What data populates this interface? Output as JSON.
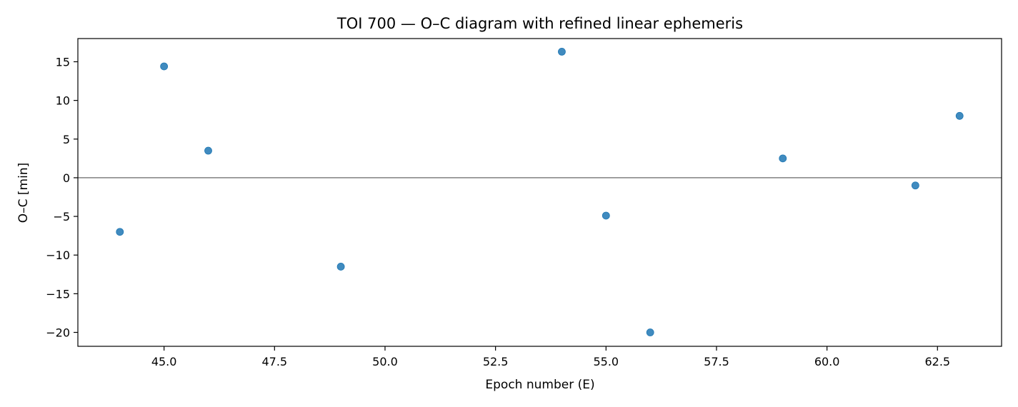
{
  "chart_data": {
    "type": "scatter",
    "title": "TOI 700 — O–C diagram with refined linear ephemeris",
    "xlabel": "Epoch number (E)",
    "ylabel": "O–C [min]",
    "xlim": [
      43.05,
      63.95
    ],
    "ylim": [
      -21.8,
      18.0
    ],
    "x_ticks": [
      45.0,
      47.5,
      50.0,
      52.5,
      55.0,
      57.5,
      60.0,
      62.5
    ],
    "x_tick_labels": [
      "45.0",
      "47.5",
      "50.0",
      "52.5",
      "55.0",
      "57.5",
      "60.0",
      "62.5"
    ],
    "y_ticks": [
      15,
      10,
      5,
      0,
      -5,
      -10,
      -15,
      -20
    ],
    "y_tick_labels": [
      "15",
      "10",
      "5",
      "0",
      "−5",
      "−10",
      "−15",
      "−20"
    ],
    "reference_line_y": 0,
    "grid": false,
    "colors": {
      "points": "#1f77b4",
      "reference_line": "#808080",
      "axes": "#000000"
    },
    "points": [
      {
        "x": 44,
        "y": -7.0
      },
      {
        "x": 45,
        "y": 14.4
      },
      {
        "x": 46,
        "y": 3.5
      },
      {
        "x": 49,
        "y": -11.5
      },
      {
        "x": 54,
        "y": 16.3
      },
      {
        "x": 55,
        "y": -4.9
      },
      {
        "x": 56,
        "y": -20.0
      },
      {
        "x": 59,
        "y": 2.5
      },
      {
        "x": 62,
        "y": -1.0
      },
      {
        "x": 63,
        "y": 8.0
      }
    ]
  }
}
